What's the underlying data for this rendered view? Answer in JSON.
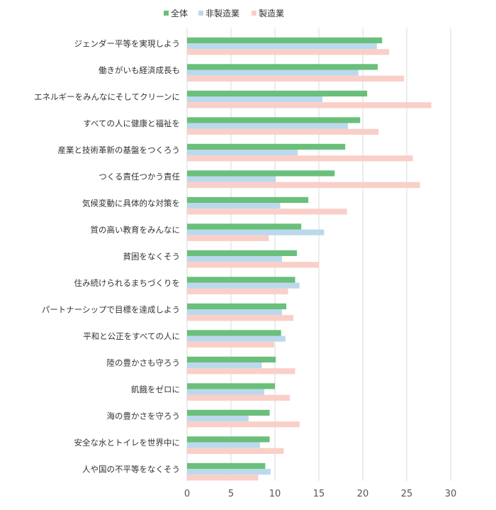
{
  "chart_data": {
    "type": "bar",
    "orientation": "horizontal",
    "categories": [
      "ジェンダー平等を実現しよう",
      "働きがいも経済成長も",
      "エネルギーをみんなにそしてクリーンに",
      "すべての人に健康と福祉を",
      "産業と技術革新の基盤をつくろう",
      "つくる責任つかう責任",
      "気候変動に具体的な対策を",
      "質の高い教育をみんなに",
      "貧困をなくそう",
      "住み続けられるまちづくりを",
      "パートナーシップで目標を達成しよう",
      "平和と公正をすべての人に",
      "陸の豊かさも守ろう",
      "飢餓をゼロに",
      "海の豊かさを守ろう",
      "安全な水とトイレを世界中に",
      "人や国の不平等をなくそう"
    ],
    "series": [
      {
        "name": "全体",
        "color": "#6abf7b",
        "values": [
          22.2,
          21.7,
          20.5,
          19.7,
          18.0,
          16.8,
          13.8,
          13.0,
          12.5,
          12.3,
          11.3,
          10.7,
          10.1,
          10.0,
          9.4,
          9.4,
          8.9
        ]
      },
      {
        "name": "非製造業",
        "color": "#bcd9ec",
        "values": [
          21.6,
          19.5,
          15.4,
          18.3,
          12.6,
          10.1,
          10.6,
          15.6,
          10.8,
          12.8,
          10.8,
          11.2,
          8.5,
          8.8,
          7.0,
          8.3,
          9.5
        ]
      },
      {
        "name": "製造業",
        "color": "#f9cfc8",
        "values": [
          23.0,
          24.7,
          27.8,
          21.8,
          25.7,
          26.5,
          18.2,
          9.3,
          15.0,
          11.5,
          12.1,
          9.9,
          12.3,
          11.7,
          12.8,
          11.0,
          8.1
        ]
      }
    ],
    "xlim": [
      0,
      30
    ],
    "x_ticks": [
      "0",
      "5",
      "10",
      "15",
      "20",
      "25",
      "30"
    ],
    "grid": true,
    "legend_position": "top-center"
  }
}
